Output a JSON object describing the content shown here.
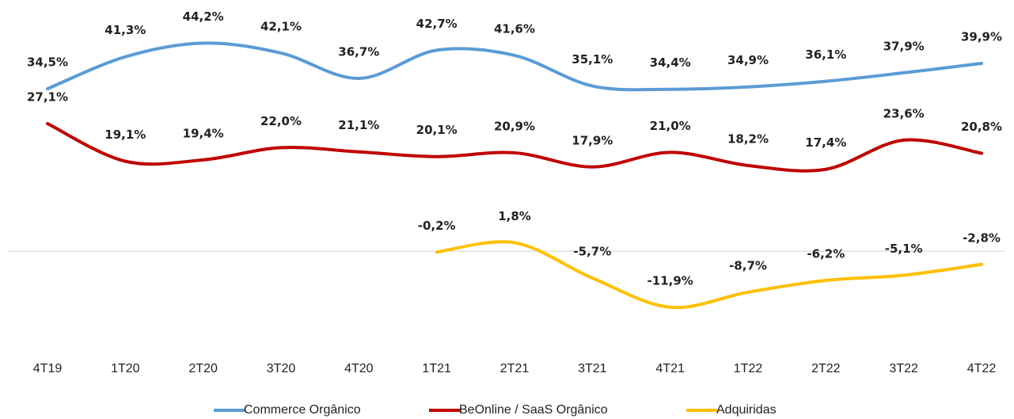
{
  "chart_data": {
    "type": "line",
    "categories": [
      "4T19",
      "1T20",
      "2T20",
      "3T20",
      "4T20",
      "1T21",
      "2T21",
      "3T21",
      "4T21",
      "1T22",
      "2T22",
      "3T22",
      "4T22"
    ],
    "series": [
      {
        "name": "Commerce Orgânico",
        "color": "#5b9bd5",
        "values": [
          34.5,
          41.3,
          44.2,
          42.1,
          36.7,
          42.7,
          41.6,
          35.1,
          34.4,
          34.9,
          36.1,
          37.9,
          39.9
        ],
        "value_labels": [
          "34,5%",
          "41,3%",
          "44,2%",
          "42,1%",
          "36,7%",
          "42,7%",
          "41,6%",
          "35,1%",
          "34,4%",
          "34,9%",
          "36,1%",
          "37,9%",
          "39,9%"
        ]
      },
      {
        "name": "BeOnline / SaaS Orgânico",
        "color": "#c00000",
        "values": [
          27.1,
          19.1,
          19.4,
          22.0,
          21.1,
          20.1,
          20.9,
          17.9,
          21.0,
          18.2,
          17.4,
          23.6,
          20.8
        ],
        "value_labels": [
          "27,1%",
          "19,1%",
          "19,4%",
          "22,0%",
          "21,1%",
          "20,1%",
          "20,9%",
          "17,9%",
          "21,0%",
          "18,2%",
          "17,4%",
          "23,6%",
          "20,8%"
        ]
      },
      {
        "name": "Adquiridas",
        "color": "#ffc000",
        "values": [
          null,
          null,
          null,
          null,
          null,
          -0.2,
          1.8,
          -5.7,
          -11.9,
          -8.7,
          -6.2,
          -5.1,
          -2.8
        ],
        "value_labels": [
          null,
          null,
          null,
          null,
          null,
          "-0,2%",
          "1,8%",
          "-5,7%",
          "-11,9%",
          "-8,7%",
          "-6,2%",
          "-5,1%",
          "-2,8%"
        ]
      }
    ],
    "ylim": [
      -20,
      50
    ],
    "legend": "bottom",
    "smooth": true
  }
}
